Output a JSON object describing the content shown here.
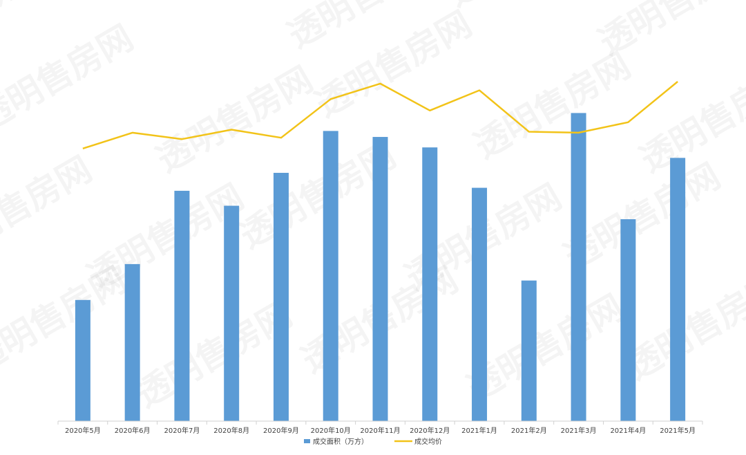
{
  "watermark": {
    "text": "透明售房网"
  },
  "chart_data": {
    "type": "bar",
    "categories": [
      "2020年5月",
      "2020年6月",
      "2020年7月",
      "2020年8月",
      "2020年9月",
      "2020年10月",
      "2020年11月",
      "2020年12月",
      "2021年1月",
      "2021年2月",
      "2021年3月",
      "2021年4月",
      "2021年5月"
    ],
    "series": [
      {
        "name": "成交面积（万方）",
        "type": "bar",
        "axis": "left",
        "color": "#5b9bd5",
        "values": [
          40.5,
          52.5,
          77.0,
          72.0,
          83.0,
          97.0,
          95.0,
          91.5,
          78.0,
          47.0,
          103.0,
          67.5,
          88.0
        ]
      },
      {
        "name": "成交均价",
        "type": "line",
        "axis": "right",
        "color": "#f2c318",
        "values": [
          23100,
          23570,
          23380,
          23660,
          23420,
          24570,
          25030,
          24230,
          24830,
          23600,
          23570,
          23880,
          25090
        ]
      }
    ],
    "left_axis": {
      "min": 0,
      "max": 135
    },
    "right_axis": {
      "min": 15000,
      "max": 27000
    },
    "legend": {
      "position": "bottom"
    },
    "grid": false
  }
}
